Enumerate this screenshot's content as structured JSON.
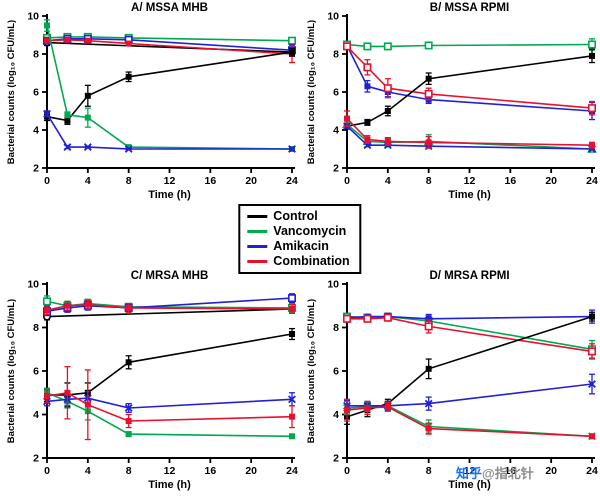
{
  "legend": {
    "items": [
      {
        "label": "Control",
        "color": "#000000"
      },
      {
        "label": "Vancomycin",
        "color": "#00A94F"
      },
      {
        "label": "Amikacin",
        "color": "#2121D4"
      },
      {
        "label": "Combination",
        "color": "#E8112D"
      }
    ]
  },
  "watermark": {
    "brand": "知乎",
    "handle": "@指北针",
    "brand_color": "#1772F6",
    "handle_color": "#8C8C8C"
  },
  "chart_data": [
    {
      "id": "A",
      "type": "line",
      "title": "A/ MSSA MHB",
      "xlabel": "Time (h)",
      "ylabel": "Bacterial counts (log₁₀ CFU/mL)",
      "xlim": [
        0,
        24
      ],
      "ylim": [
        2,
        10
      ],
      "xticks": [
        0,
        4,
        8,
        12,
        16,
        20,
        24
      ],
      "yticks": [
        2,
        4,
        6,
        8,
        10
      ],
      "series": [
        {
          "name": "Control",
          "variant": "trace-1",
          "color": "#000000",
          "marker": "circle-open",
          "x": [
            0,
            24
          ],
          "y": [
            8.6,
            8.1
          ],
          "err": [
            0.15,
            0.2
          ]
        },
        {
          "name": "Vancomycin",
          "variant": "trace-1",
          "color": "#00A94F",
          "marker": "square-open",
          "x": [
            0,
            2,
            4,
            8,
            24
          ],
          "y": [
            8.85,
            8.9,
            8.9,
            8.85,
            8.7
          ],
          "err": [
            0.1,
            0,
            0,
            0,
            0.15
          ]
        },
        {
          "name": "Amikacin",
          "variant": "trace-1",
          "color": "#2121D4",
          "marker": "square-open",
          "x": [
            0,
            2,
            4,
            8,
            24
          ],
          "y": [
            8.7,
            8.8,
            8.8,
            8.75,
            8.2
          ],
          "err": [
            0.1,
            0,
            0,
            0,
            0.3
          ]
        },
        {
          "name": "Combination",
          "variant": "trace-1",
          "color": "#E8112D",
          "marker": "square-filled",
          "x": [
            0,
            2,
            4,
            8,
            24
          ],
          "y": [
            8.7,
            8.75,
            8.7,
            8.55,
            8.0
          ],
          "err": [
            0.1,
            0,
            0,
            0,
            0.45
          ]
        },
        {
          "name": "Control",
          "variant": "trace-2",
          "color": "#000000",
          "marker": "square-filled",
          "x": [
            0,
            2,
            4,
            8,
            24
          ],
          "y": [
            4.7,
            4.5,
            5.8,
            6.8,
            8.1
          ],
          "err": [
            0.2,
            0.2,
            0.55,
            0.25,
            0.2
          ]
        },
        {
          "name": "Vancomycin",
          "variant": "trace-2",
          "color": "#00A94F",
          "marker": "square-filled",
          "x": [
            0,
            2,
            4,
            8,
            24
          ],
          "y": [
            9.5,
            4.8,
            4.65,
            3.1,
            3.0
          ],
          "err": [
            0.3,
            0.15,
            0.5,
            0.08,
            0.05
          ]
        },
        {
          "name": "Amikacin",
          "variant": "trace-2",
          "color": "#2121D4",
          "marker": "x",
          "x": [
            0,
            2,
            4,
            8,
            24
          ],
          "y": [
            4.85,
            3.1,
            3.1,
            3.0,
            3.0
          ],
          "err": [
            0.15,
            0.08,
            0.05,
            0.05,
            0.05
          ]
        }
      ]
    },
    {
      "id": "B",
      "type": "line",
      "title": "B/ MSSA RPMI",
      "xlabel": "Time (h)",
      "ylabel": "Bacterial counts (log₁₀ CFU/mL)",
      "xlim": [
        0,
        24
      ],
      "ylim": [
        2,
        10
      ],
      "xticks": [
        0,
        4,
        8,
        12,
        16,
        20,
        24
      ],
      "yticks": [
        2,
        4,
        6,
        8,
        10
      ],
      "series": [
        {
          "name": "Vancomycin",
          "variant": "trace-1",
          "color": "#00A94F",
          "marker": "square-open",
          "x": [
            0,
            2,
            4,
            8,
            24
          ],
          "y": [
            8.5,
            8.4,
            8.4,
            8.45,
            8.5
          ],
          "err": [
            0.1,
            0.08,
            0.08,
            0.1,
            0.3
          ]
        },
        {
          "name": "Amikacin",
          "variant": "trace-1",
          "color": "#2121D4",
          "marker": "square-filled",
          "x": [
            0,
            2,
            4,
            8,
            24
          ],
          "y": [
            8.45,
            6.3,
            6.0,
            5.6,
            5.0
          ],
          "err": [
            0.12,
            0.3,
            0.25,
            0.2,
            0.45
          ]
        },
        {
          "name": "Combination",
          "variant": "trace-1",
          "color": "#E8112D",
          "marker": "square-open",
          "x": [
            0,
            2,
            4,
            8,
            24
          ],
          "y": [
            8.4,
            7.3,
            6.2,
            5.9,
            5.15
          ],
          "err": [
            0.15,
            0.4,
            0.5,
            0.3,
            0.35
          ]
        },
        {
          "name": "Control",
          "variant": "trace-1",
          "color": "#000000",
          "marker": "square-filled",
          "x": [
            0,
            2,
            4,
            8,
            24
          ],
          "y": [
            4.2,
            4.4,
            5.0,
            6.7,
            7.9
          ],
          "err": [
            0.15,
            0.15,
            0.25,
            0.3,
            0.35
          ]
        },
        {
          "name": "Vancomycin",
          "variant": "trace-2",
          "color": "#00A94F",
          "marker": "triangle-open",
          "x": [
            0,
            2,
            4,
            8,
            24
          ],
          "y": [
            4.3,
            3.4,
            3.35,
            3.4,
            3.0
          ],
          "err": [
            0.2,
            0.1,
            0.2,
            0.35,
            0.08
          ]
        },
        {
          "name": "Amikacin",
          "variant": "trace-2",
          "color": "#2121D4",
          "marker": "x",
          "x": [
            0,
            2,
            4,
            8,
            24
          ],
          "y": [
            4.2,
            3.2,
            3.2,
            3.15,
            3.0
          ],
          "err": [
            0.12,
            0.08,
            0.08,
            0.08,
            0.05
          ]
        },
        {
          "name": "Combination",
          "variant": "trace-2",
          "color": "#E8112D",
          "marker": "square-filled",
          "x": [
            0,
            2,
            4,
            8,
            24
          ],
          "y": [
            4.6,
            3.5,
            3.4,
            3.35,
            3.2
          ],
          "err": [
            0.4,
            0.2,
            0.2,
            0.3,
            0.15
          ]
        }
      ]
    },
    {
      "id": "C",
      "type": "line",
      "title": "C/ MRSA MHB",
      "xlabel": "Time (h)",
      "ylabel": "Bacterial counts (log₁₀ CFU/mL)",
      "xlim": [
        0,
        24
      ],
      "ylim": [
        2,
        10
      ],
      "xticks": [
        0,
        4,
        8,
        12,
        16,
        20,
        24
      ],
      "yticks": [
        2,
        4,
        6,
        8,
        10
      ],
      "series": [
        {
          "name": "Control",
          "variant": "trace-1",
          "color": "#000000",
          "marker": "circle-open",
          "x": [
            0,
            24
          ],
          "y": [
            8.5,
            8.85
          ],
          "err": [
            0.15,
            0.15
          ]
        },
        {
          "name": "Vancomycin",
          "variant": "trace-1",
          "color": "#00A94F",
          "marker": "square-open",
          "x": [
            0,
            2,
            4,
            8,
            24
          ],
          "y": [
            9.2,
            9.0,
            9.1,
            8.95,
            8.9
          ],
          "err": [
            0.25,
            0.2,
            0.2,
            0.15,
            0.2
          ]
        },
        {
          "name": "Amikacin",
          "variant": "trace-1",
          "color": "#2121D4",
          "marker": "square-open",
          "x": [
            0,
            2,
            4,
            8,
            24
          ],
          "y": [
            8.75,
            8.9,
            9.0,
            8.9,
            9.35
          ],
          "err": [
            0.2,
            0.2,
            0.2,
            0.15,
            0.2
          ]
        },
        {
          "name": "Combination",
          "variant": "trace-1",
          "color": "#E8112D",
          "marker": "square-filled",
          "x": [
            0,
            2,
            4,
            8,
            24
          ],
          "y": [
            8.8,
            9.0,
            9.05,
            8.9,
            8.85
          ],
          "err": [
            0.2,
            0.2,
            0.2,
            0.2,
            0.2
          ]
        },
        {
          "name": "Control",
          "variant": "trace-2",
          "color": "#000000",
          "marker": "square-filled",
          "x": [
            0,
            2,
            4,
            8,
            24
          ],
          "y": [
            4.9,
            4.9,
            5.0,
            6.4,
            7.7
          ],
          "err": [
            0.3,
            0.55,
            0.45,
            0.3,
            0.25
          ]
        },
        {
          "name": "Vancomycin",
          "variant": "trace-2",
          "color": "#00A94F",
          "marker": "square-filled",
          "x": [
            0,
            2,
            4,
            8,
            24
          ],
          "y": [
            5.0,
            4.6,
            4.15,
            3.1,
            3.0
          ],
          "err": [
            0.2,
            0.3,
            0.4,
            0.1,
            0.05
          ]
        },
        {
          "name": "Amikacin",
          "variant": "trace-2",
          "color": "#2121D4",
          "marker": "x",
          "x": [
            0,
            2,
            4,
            8,
            24
          ],
          "y": [
            4.6,
            4.7,
            4.75,
            4.3,
            4.7
          ],
          "err": [
            0.2,
            0.3,
            0.3,
            0.2,
            0.3
          ]
        },
        {
          "name": "Combination",
          "variant": "trace-2",
          "color": "#E8112D",
          "marker": "square-filled",
          "x": [
            0,
            2,
            4,
            8,
            24
          ],
          "y": [
            4.85,
            5.0,
            4.45,
            3.7,
            3.9
          ],
          "err": [
            0.3,
            1.2,
            1.6,
            0.3,
            0.5
          ]
        }
      ]
    },
    {
      "id": "D",
      "type": "line",
      "title": "D/ MRSA RPMI",
      "xlabel": "Time (h)",
      "ylabel": "Bacterial counts (log₁₀ CFU/mL)",
      "xlim": [
        0,
        24
      ],
      "ylim": [
        2,
        10
      ],
      "xticks": [
        0,
        4,
        8,
        12,
        16,
        20,
        24
      ],
      "yticks": [
        2,
        4,
        6,
        8,
        10
      ],
      "series": [
        {
          "name": "Vancomycin",
          "variant": "trace-1",
          "color": "#00A94F",
          "marker": "square-open",
          "x": [
            0,
            2,
            4,
            8,
            24
          ],
          "y": [
            8.5,
            8.45,
            8.5,
            8.3,
            7.0
          ],
          "err": [
            0.15,
            0.1,
            0.15,
            0.25,
            0.4
          ]
        },
        {
          "name": "Amikacin",
          "variant": "trace-1",
          "color": "#2121D4",
          "marker": "square-filled",
          "x": [
            0,
            2,
            4,
            8,
            24
          ],
          "y": [
            8.45,
            8.5,
            8.5,
            8.4,
            8.5
          ],
          "err": [
            0.1,
            0.1,
            0.15,
            0.2,
            0.3
          ]
        },
        {
          "name": "Combination",
          "variant": "trace-1",
          "color": "#E8112D",
          "marker": "square-open",
          "x": [
            0,
            2,
            4,
            8,
            24
          ],
          "y": [
            8.4,
            8.4,
            8.45,
            8.05,
            6.9
          ],
          "err": [
            0.15,
            0.1,
            0.15,
            0.3,
            0.35
          ]
        },
        {
          "name": "Control",
          "variant": "trace-1",
          "color": "#000000",
          "marker": "square-filled",
          "x": [
            0,
            2,
            4,
            8,
            24
          ],
          "y": [
            3.9,
            4.2,
            4.5,
            6.1,
            8.5
          ],
          "err": [
            0.35,
            0.3,
            0.2,
            0.45,
            0.2
          ]
        },
        {
          "name": "Vancomycin",
          "variant": "trace-2",
          "color": "#00A94F",
          "marker": "x",
          "x": [
            0,
            2,
            4,
            8,
            24
          ],
          "y": [
            4.3,
            4.35,
            4.4,
            3.45,
            3.0
          ],
          "err": [
            0.3,
            0.2,
            0.2,
            0.3,
            0.1
          ]
        },
        {
          "name": "Amikacin",
          "variant": "trace-2",
          "color": "#2121D4",
          "marker": "x",
          "x": [
            0,
            2,
            4,
            8,
            24
          ],
          "y": [
            4.4,
            4.4,
            4.4,
            4.5,
            5.4
          ],
          "err": [
            0.25,
            0.2,
            0.2,
            0.3,
            0.45
          ]
        },
        {
          "name": "Combination",
          "variant": "trace-2",
          "color": "#E8112D",
          "marker": "square-filled",
          "x": [
            0,
            2,
            4,
            8,
            24
          ],
          "y": [
            4.2,
            4.3,
            4.35,
            3.35,
            3.0
          ],
          "err": [
            0.5,
            0.3,
            0.2,
            0.25,
            0.1
          ]
        }
      ]
    }
  ]
}
